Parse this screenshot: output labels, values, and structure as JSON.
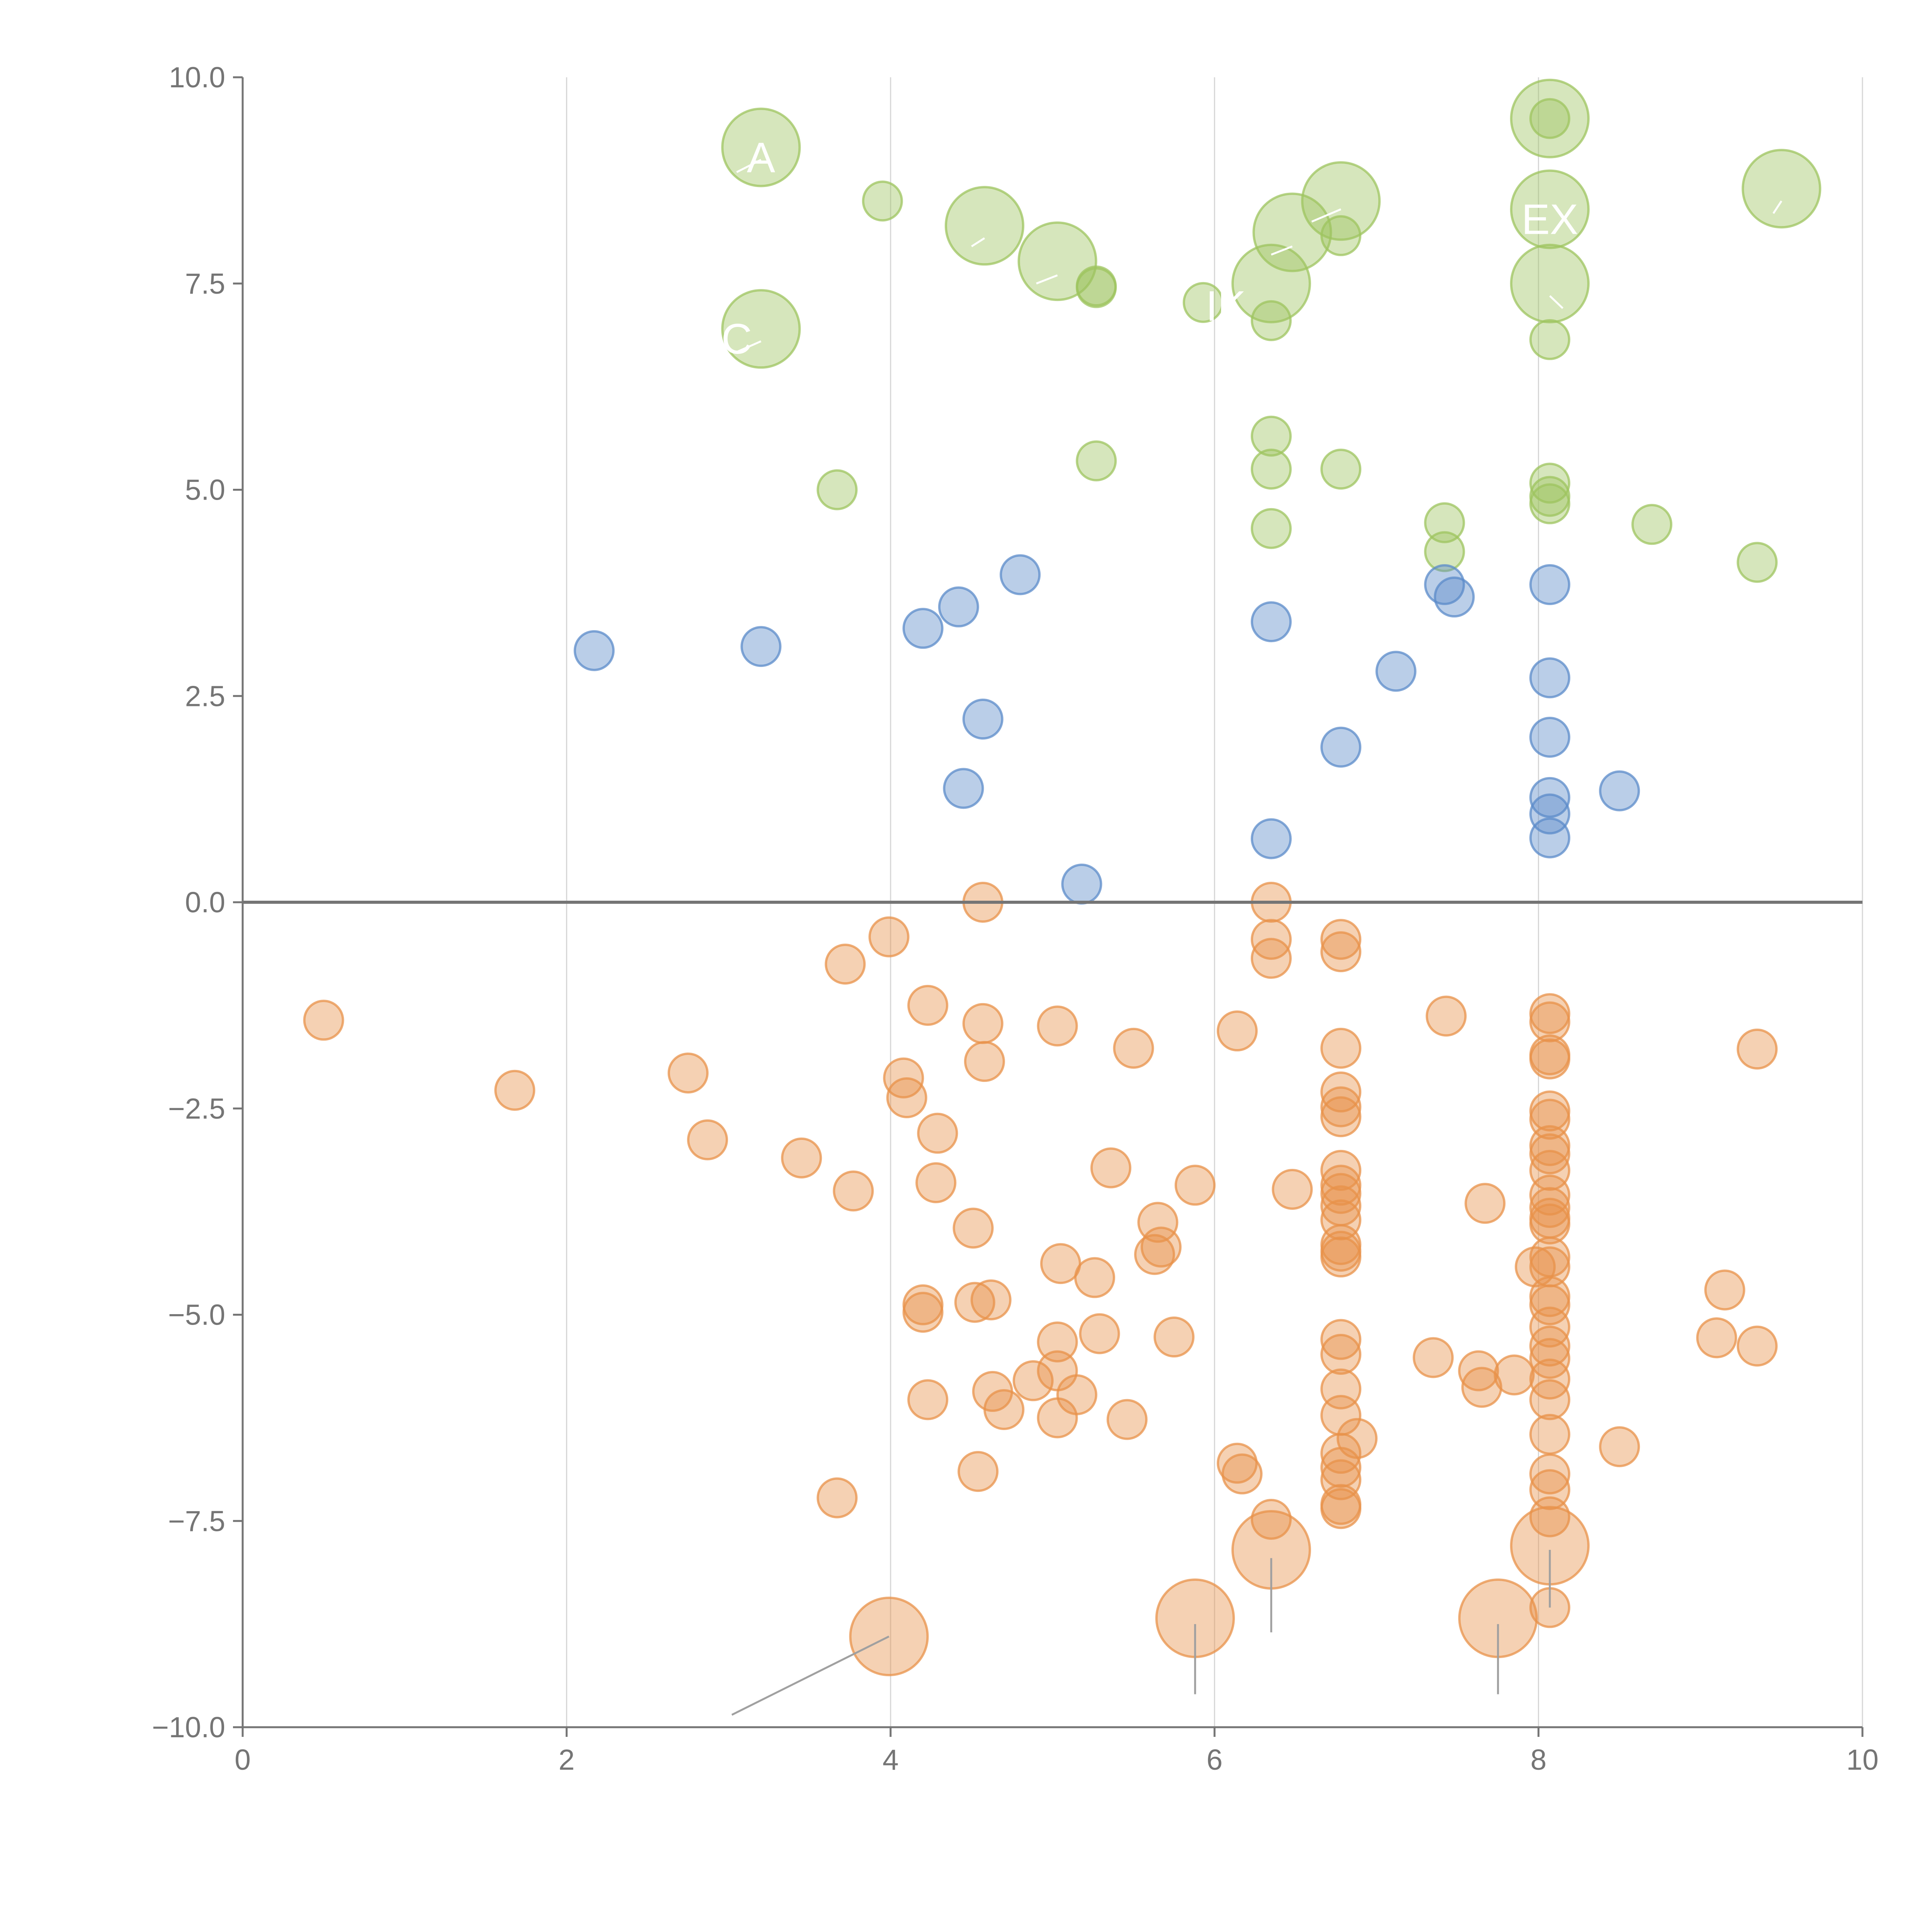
{
  "chart_data": {
    "type": "scatter",
    "title": "",
    "xlabel": "",
    "ylabel": "",
    "xlim": [
      0,
      10
    ],
    "ylim": [
      -10,
      10
    ],
    "grid": "vertical",
    "x_ticks": [
      0,
      2,
      4,
      6,
      8,
      10
    ],
    "y_ticks": [
      -10.0,
      -7.5,
      -5.0,
      -2.5,
      0.0,
      2.5,
      5.0,
      7.5,
      10.0
    ],
    "x_tick_labels": [
      "0",
      "2",
      "4",
      "6",
      "8",
      "10"
    ],
    "y_tick_labels": [
      "−10.0",
      "−7.5",
      "−5.0",
      "−2.5",
      "0.0",
      "2.5",
      "5.0",
      "7.5",
      "10.0"
    ],
    "zero_line": 0,
    "colors": {
      "green": "#9dc45f",
      "blue": "#5b8bc9",
      "orange": "#e8924a",
      "axis": "#757575",
      "grid": "#d6d6d6"
    },
    "series": [
      {
        "name": "high",
        "color": "#9dc45f",
        "points": [
          [
            3.2,
            9.15,
            3
          ],
          [
            3.2,
            6.95,
            3
          ],
          [
            3.95,
            8.5,
            1
          ],
          [
            3.67,
            5.0,
            1
          ],
          [
            4.58,
            8.2,
            3
          ],
          [
            5.03,
            7.77,
            3
          ],
          [
            5.27,
            7.47,
            1
          ],
          [
            5.27,
            7.45,
            1
          ],
          [
            5.27,
            5.35,
            1
          ],
          [
            5.93,
            7.27,
            1
          ],
          [
            6.35,
            7.5,
            3
          ],
          [
            6.48,
            8.12,
            3
          ],
          [
            6.78,
            8.5,
            3
          ],
          [
            6.78,
            8.08,
            1
          ],
          [
            6.35,
            7.05,
            1
          ],
          [
            6.35,
            5.65,
            1
          ],
          [
            6.35,
            5.25,
            1
          ],
          [
            6.35,
            4.53,
            1
          ],
          [
            6.78,
            5.25,
            1
          ],
          [
            8.07,
            9.5,
            3
          ],
          [
            8.07,
            9.5,
            1
          ],
          [
            8.07,
            8.4,
            3
          ],
          [
            8.07,
            7.5,
            3
          ],
          [
            8.07,
            6.82,
            1
          ],
          [
            8.07,
            5.08,
            1
          ],
          [
            8.07,
            4.92,
            1
          ],
          [
            8.07,
            4.83,
            1
          ],
          [
            7.42,
            4.6,
            1
          ],
          [
            7.42,
            4.25,
            1
          ],
          [
            8.7,
            4.58,
            1
          ],
          [
            9.35,
            4.12,
            1
          ],
          [
            9.5,
            8.65,
            3
          ]
        ]
      },
      {
        "name": "mid",
        "color": "#5b8bc9",
        "points": [
          [
            2.17,
            3.05,
            1
          ],
          [
            3.2,
            3.1,
            1
          ],
          [
            4.2,
            3.32,
            1
          ],
          [
            4.42,
            3.58,
            1
          ],
          [
            4.8,
            3.97,
            1
          ],
          [
            4.57,
            2.22,
            1
          ],
          [
            4.45,
            1.38,
            1
          ],
          [
            5.18,
            0.22,
            1
          ],
          [
            6.35,
            3.4,
            1
          ],
          [
            6.35,
            0.77,
            1
          ],
          [
            6.78,
            1.88,
            1
          ],
          [
            7.12,
            2.8,
            1
          ],
          [
            7.42,
            3.85,
            1
          ],
          [
            7.48,
            3.7,
            1
          ],
          [
            8.07,
            3.85,
            1
          ],
          [
            8.07,
            2.72,
            1
          ],
          [
            8.07,
            2.0,
            1
          ],
          [
            8.07,
            1.27,
            1
          ],
          [
            8.07,
            1.07,
            1
          ],
          [
            8.07,
            0.78,
            1
          ],
          [
            8.5,
            1.35,
            1
          ]
        ]
      },
      {
        "name": "low",
        "color": "#e8924a",
        "points": [
          [
            0.5,
            -1.43,
            1
          ],
          [
            1.68,
            -2.28,
            1
          ],
          [
            2.75,
            -2.07,
            1
          ],
          [
            2.87,
            -2.88,
            1
          ],
          [
            3.45,
            -3.1,
            1
          ],
          [
            3.72,
            -0.75,
            1
          ],
          [
            3.77,
            -3.5,
            1
          ],
          [
            3.67,
            -7.22,
            1
          ],
          [
            3.99,
            -0.42,
            1
          ],
          [
            4.08,
            -2.13,
            1
          ],
          [
            4.1,
            -2.37,
            1
          ],
          [
            4.23,
            -1.25,
            1
          ],
          [
            4.29,
            -2.8,
            1
          ],
          [
            4.28,
            -3.4,
            1
          ],
          [
            4.2,
            -4.88,
            1
          ],
          [
            4.2,
            -4.97,
            1
          ],
          [
            4.23,
            -6.03,
            1
          ],
          [
            4.51,
            -3.95,
            1
          ],
          [
            4.52,
            -4.85,
            1
          ],
          [
            4.57,
            -1.47,
            1
          ],
          [
            4.58,
            -1.93,
            1
          ],
          [
            4.57,
            0.0,
            1
          ],
          [
            4.62,
            -4.82,
            1
          ],
          [
            4.63,
            -5.93,
            1
          ],
          [
            4.7,
            -6.15,
            1
          ],
          [
            4.54,
            -6.9,
            1
          ],
          [
            4.88,
            -5.8,
            1
          ],
          [
            5.03,
            -1.5,
            1
          ],
          [
            5.05,
            -4.38,
            1
          ],
          [
            5.03,
            -5.33,
            1
          ],
          [
            5.03,
            -5.68,
            1
          ],
          [
            5.03,
            -6.25,
            1
          ],
          [
            5.15,
            -5.97,
            1
          ],
          [
            5.26,
            -4.55,
            1
          ],
          [
            5.29,
            -5.23,
            1
          ],
          [
            5.36,
            -3.22,
            1
          ],
          [
            5.5,
            -1.77,
            1
          ],
          [
            5.46,
            -6.27,
            1
          ],
          [
            5.63,
            -4.27,
            1
          ],
          [
            5.65,
            -3.88,
            1
          ],
          [
            5.67,
            -4.18,
            1
          ],
          [
            5.75,
            -5.27,
            1
          ],
          [
            5.88,
            -3.43,
            1
          ],
          [
            6.14,
            -1.56,
            1
          ],
          [
            6.14,
            -6.8,
            1
          ],
          [
            6.17,
            -6.93,
            1
          ],
          [
            6.35,
            0.0,
            1
          ],
          [
            6.35,
            -0.45,
            1
          ],
          [
            6.35,
            -0.68,
            1
          ],
          [
            6.35,
            -7.48,
            1
          ],
          [
            6.48,
            -3.48,
            1
          ],
          [
            6.78,
            -0.45,
            1
          ],
          [
            6.78,
            -0.6,
            1
          ],
          [
            6.78,
            -1.77,
            1
          ],
          [
            6.78,
            -2.3,
            1
          ],
          [
            6.78,
            -2.48,
            1
          ],
          [
            6.78,
            -2.6,
            1
          ],
          [
            6.78,
            -3.25,
            1
          ],
          [
            6.78,
            -3.43,
            1
          ],
          [
            6.78,
            -3.53,
            1
          ],
          [
            6.78,
            -3.68,
            1
          ],
          [
            6.78,
            -3.85,
            1
          ],
          [
            6.78,
            -4.15,
            1
          ],
          [
            6.78,
            -4.23,
            1
          ],
          [
            6.78,
            -4.3,
            1
          ],
          [
            6.78,
            -5.3,
            1
          ],
          [
            6.78,
            -5.48,
            1
          ],
          [
            6.78,
            -5.9,
            1
          ],
          [
            6.78,
            -6.22,
            1
          ],
          [
            6.78,
            -6.68,
            1
          ],
          [
            6.78,
            -6.85,
            1
          ],
          [
            6.78,
            -7.0,
            1
          ],
          [
            6.78,
            -7.3,
            1
          ],
          [
            6.78,
            -7.35,
            1
          ],
          [
            6.88,
            -6.5,
            1
          ],
          [
            7.35,
            -5.52,
            1
          ],
          [
            7.43,
            -1.38,
            1
          ],
          [
            7.63,
            -5.68,
            1
          ],
          [
            7.65,
            -5.88,
            1
          ],
          [
            7.67,
            -3.65,
            1
          ],
          [
            7.85,
            -5.73,
            1
          ],
          [
            7.98,
            -4.42,
            1
          ],
          [
            8.07,
            -1.35,
            1
          ],
          [
            8.07,
            -1.45,
            1
          ],
          [
            8.07,
            -1.85,
            1
          ],
          [
            8.07,
            -1.9,
            1
          ],
          [
            8.07,
            -2.53,
            1
          ],
          [
            8.07,
            -2.63,
            1
          ],
          [
            8.07,
            -2.95,
            1
          ],
          [
            8.07,
            -3.05,
            1
          ],
          [
            8.07,
            -3.25,
            1
          ],
          [
            8.07,
            -3.55,
            1
          ],
          [
            8.07,
            -3.7,
            1
          ],
          [
            8.07,
            -3.83,
            1
          ],
          [
            8.07,
            -3.9,
            1
          ],
          [
            8.07,
            -4.3,
            1
          ],
          [
            8.07,
            -4.42,
            1
          ],
          [
            8.07,
            -4.78,
            1
          ],
          [
            8.07,
            -4.88,
            1
          ],
          [
            8.07,
            -5.15,
            1
          ],
          [
            8.07,
            -5.38,
            1
          ],
          [
            8.07,
            -5.53,
            1
          ],
          [
            8.07,
            -5.78,
            1
          ],
          [
            8.07,
            -6.03,
            1
          ],
          [
            8.07,
            -6.45,
            1
          ],
          [
            8.07,
            -6.93,
            1
          ],
          [
            8.07,
            -7.12,
            1
          ],
          [
            8.07,
            -7.45,
            1
          ],
          [
            8.07,
            -8.55,
            1
          ],
          [
            8.5,
            -6.6,
            1
          ],
          [
            9.1,
            -5.28,
            1
          ],
          [
            9.15,
            -4.7,
            1
          ],
          [
            9.35,
            -1.78,
            1
          ],
          [
            9.35,
            -5.38,
            1
          ],
          [
            3.99,
            -8.9,
            3
          ],
          [
            5.88,
            -8.68,
            3
          ],
          [
            6.35,
            -7.85,
            3
          ],
          [
            7.75,
            -8.68,
            3
          ],
          [
            8.07,
            -7.8,
            3
          ]
        ]
      }
    ],
    "annotations": [
      {
        "label": "A",
        "x": 3.2,
        "y": 8.85
      },
      {
        "label": "C",
        "x": 3.05,
        "y": 6.65
      },
      {
        "label": "EX",
        "x": 8.07,
        "y": 8.1
      },
      {
        "label": "IK",
        "x": 6.07,
        "y": 7.05
      }
    ],
    "leader_lines": [
      [
        3.99,
        -8.9,
        3.02,
        -9.85
      ],
      [
        5.88,
        -8.75,
        5.88,
        -9.6
      ],
      [
        6.35,
        -7.95,
        6.35,
        -8.85
      ],
      [
        7.75,
        -8.75,
        7.75,
        -9.6
      ],
      [
        8.07,
        -7.85,
        8.07,
        -8.55
      ],
      [
        3.2,
        9.0,
        3.05,
        8.85
      ],
      [
        3.2,
        6.8,
        3.05,
        6.67
      ],
      [
        4.58,
        8.05,
        4.5,
        7.95
      ],
      [
        5.03,
        7.6,
        4.9,
        7.5
      ],
      [
        6.48,
        7.95,
        6.35,
        7.85
      ],
      [
        6.78,
        8.4,
        6.6,
        8.25
      ],
      [
        8.07,
        7.35,
        8.15,
        7.2
      ],
      [
        9.5,
        8.5,
        9.45,
        8.35
      ]
    ]
  }
}
